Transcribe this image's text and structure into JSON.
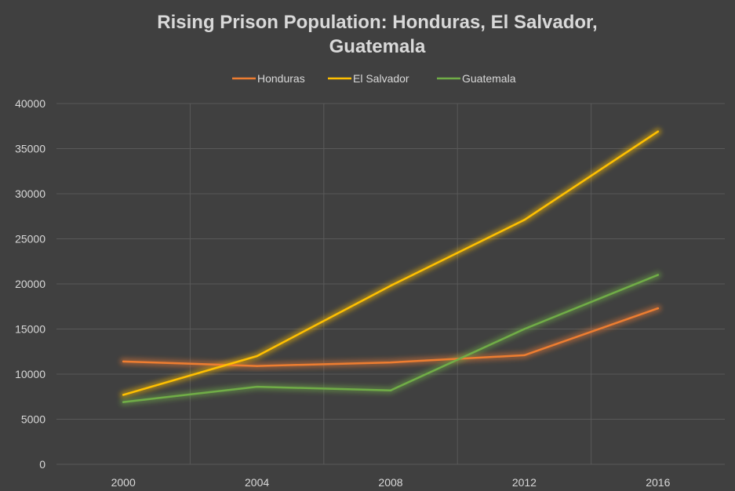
{
  "chart_data": {
    "type": "line",
    "title_lines": [
      "Rising Prison Population: Honduras, El Salvador,",
      "Guatemala"
    ],
    "categories": [
      "2000",
      "2004",
      "2008",
      "2012",
      "2016"
    ],
    "series": [
      {
        "name": "Honduras",
        "color": "#ed7d31",
        "values": [
          11400,
          10900,
          11300,
          12100,
          17300
        ]
      },
      {
        "name": "El Salvador",
        "color": "#ffc000",
        "values": [
          7700,
          12000,
          19800,
          27100,
          36900
        ]
      },
      {
        "name": "Guatemala",
        "color": "#70ad47",
        "values": [
          6900,
          8600,
          8200,
          15000,
          21000
        ]
      }
    ],
    "xlabel": "",
    "ylabel": "",
    "ylim": [
      0,
      40000
    ],
    "yticks": [
      "0",
      "5000",
      "10000",
      "15000",
      "20000",
      "25000",
      "30000",
      "35000",
      "40000"
    ],
    "grid": true,
    "legend_position": "top",
    "background_color": "#404040",
    "text_color": "#d9d9d9",
    "grid_color": "#595959"
  }
}
